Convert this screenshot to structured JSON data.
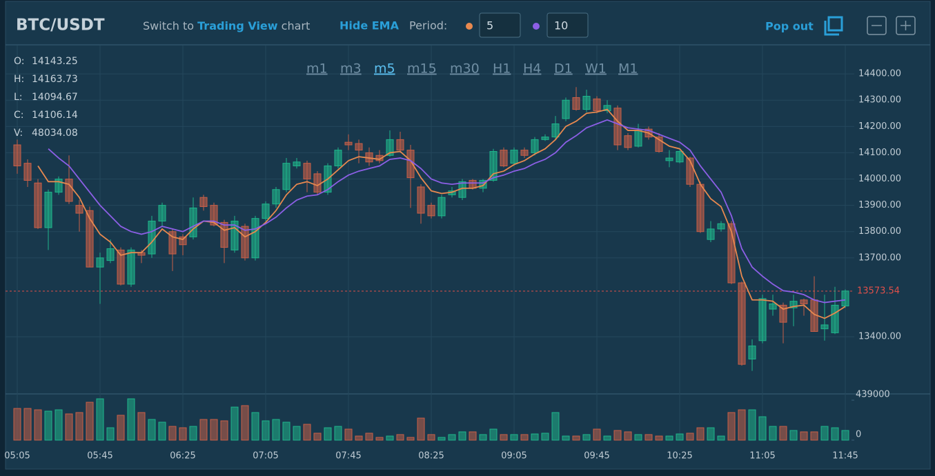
{
  "toolbar": {
    "symbol": "BTC/USDT",
    "switch_prefix": "Switch to",
    "switch_link": "Trading View",
    "switch_suffix": "chart",
    "hide_ema": "Hide EMA",
    "period_label": "Period:",
    "pop_out": "Pop out"
  },
  "timeframes": {
    "items": [
      "m1",
      "m3",
      "m5",
      "m15",
      "m30",
      "H1",
      "H4",
      "D1",
      "W1",
      "M1"
    ],
    "active": 2
  },
  "ohlc_info": [
    {
      "label": "O:",
      "value": 14143.25
    },
    {
      "label": "H:",
      "value": 14163.73
    },
    {
      "label": "L:",
      "value": 14094.67
    },
    {
      "label": "C:",
      "value": 14106.14
    },
    {
      "label": "V:",
      "value": 48034.08
    }
  ],
  "chart_data": {
    "type": "candlestick",
    "categories": [
      "05:05",
      null,
      null,
      null,
      null,
      null,
      null,
      null,
      "05:45",
      null,
      null,
      null,
      null,
      null,
      null,
      null,
      "06:25",
      null,
      null,
      null,
      null,
      null,
      null,
      null,
      "07:05",
      null,
      null,
      null,
      null,
      null,
      null,
      null,
      "07:45",
      null,
      null,
      null,
      null,
      null,
      null,
      null,
      "08:25",
      null,
      null,
      null,
      null,
      null,
      null,
      null,
      "09:05",
      null,
      null,
      null,
      null,
      null,
      null,
      null,
      "09:45",
      null,
      null,
      null,
      null,
      null,
      null,
      null,
      "10:25",
      null,
      null,
      null,
      null,
      null,
      null,
      null,
      "11:05",
      null,
      null,
      null,
      null,
      null,
      null,
      null,
      "11:45"
    ],
    "open": [
      14130,
      14060,
      13985,
      13815,
      13950,
      14000,
      13900,
      13880,
      13665,
      13690,
      13730,
      13600,
      13720,
      13715,
      13840,
      13800,
      13780,
      13780,
      13930,
      13900,
      13835,
      13730,
      13820,
      13700,
      13850,
      13905,
      13960,
      14050,
      14060,
      14020,
      13950,
      14050,
      14140,
      14135,
      14100,
      14090,
      14090,
      14150,
      14110,
      13970,
      13900,
      13860,
      13940,
      13930,
      13995,
      13965,
      13995,
      14110,
      14060,
      14110,
      14100,
      14150,
      14160,
      14230,
      14310,
      14265,
      14305,
      14260,
      14270,
      14165,
      14125,
      14190,
      14160,
      14070,
      14065,
      14080,
      13980,
      13770,
      13810,
      13830,
      13605,
      13315,
      13385,
      13505,
      13520,
      13510,
      13540,
      13540,
      13430,
      13415,
      13517
    ],
    "high": [
      14150,
      14075,
      14000,
      13960,
      14010,
      14090,
      13920,
      13895,
      13720,
      13770,
      13740,
      13740,
      13730,
      13860,
      13910,
      13810,
      13790,
      13930,
      13940,
      13910,
      13845,
      13860,
      13830,
      13860,
      13915,
      13970,
      14080,
      14080,
      14070,
      14030,
      14060,
      14120,
      14170,
      14150,
      14120,
      14110,
      14185,
      14180,
      14130,
      13980,
      13910,
      13940,
      13970,
      14000,
      14000,
      14000,
      14115,
      14120,
      14120,
      14120,
      14160,
      14170,
      14240,
      14310,
      14350,
      14340,
      14315,
      14300,
      14280,
      14175,
      14210,
      14200,
      14175,
      14110,
      14110,
      14085,
      13990,
      13840,
      13840,
      13840,
      13610,
      13390,
      13560,
      13560,
      13530,
      13560,
      13545,
      13630,
      13560,
      13590,
      13580
    ],
    "low": [
      14020,
      13970,
      13810,
      13730,
      13940,
      13905,
      13800,
      13665,
      13525,
      13680,
      13595,
      13590,
      13680,
      13700,
      13820,
      13650,
      13710,
      13770,
      13880,
      13820,
      13680,
      13720,
      13690,
      13690,
      13840,
      13890,
      13950,
      14040,
      13950,
      13940,
      13940,
      14040,
      14110,
      14060,
      14050,
      14060,
      14085,
      14100,
      13890,
      13830,
      13850,
      13850,
      13930,
      13920,
      13960,
      13950,
      13990,
      14045,
      14050,
      14080,
      14090,
      14145,
      14150,
      14220,
      14260,
      14255,
      14250,
      14250,
      14110,
      14110,
      14120,
      14150,
      14100,
      14045,
      14060,
      13970,
      13795,
      13760,
      13800,
      13600,
      13290,
      13270,
      13375,
      13480,
      13375,
      13440,
      13480,
      13420,
      13385,
      13410,
      13510
    ],
    "close": [
      14050,
      13995,
      13815,
      13950,
      14000,
      13915,
      13870,
      13665,
      13700,
      13735,
      13600,
      13730,
      13710,
      13840,
      13900,
      13715,
      13750,
      13890,
      13895,
      13825,
      13740,
      13840,
      13700,
      13850,
      13905,
      13960,
      14060,
      14065,
      14000,
      13950,
      14050,
      14110,
      14130,
      14110,
      14065,
      14070,
      14150,
      14110,
      14005,
      13870,
      13860,
      13930,
      13955,
      13990,
      13965,
      13995,
      14105,
      14050,
      14110,
      14090,
      14150,
      14160,
      14210,
      14300,
      14265,
      14315,
      14260,
      14280,
      14130,
      14120,
      14185,
      14160,
      14105,
      14080,
      14105,
      13980,
      13800,
      13810,
      13830,
      13605,
      13295,
      13365,
      13545,
      13525,
      13455,
      13535,
      13525,
      13420,
      13445,
      13520,
      13574
    ],
    "up_color": "#1fb58b",
    "down_color": "#c85f48",
    "ema": [
      {
        "period": 5,
        "color": "#e8894f",
        "values": [
          null,
          null,
          14050,
          13990,
          13990,
          13980,
          13930,
          13850,
          13790,
          13760,
          13710,
          13720,
          13720,
          13760,
          13810,
          13780,
          13770,
          13810,
          13840,
          13835,
          13805,
          13815,
          13780,
          13800,
          13835,
          13880,
          13940,
          13980,
          13990,
          13975,
          14000,
          14035,
          14070,
          14085,
          14080,
          14075,
          14100,
          14105,
          14070,
          14005,
          13955,
          13945,
          13950,
          13965,
          13965,
          13975,
          14020,
          14030,
          14055,
          14070,
          14095,
          14115,
          14150,
          14200,
          14220,
          14250,
          14255,
          14265,
          14220,
          14185,
          14185,
          14175,
          14150,
          14125,
          14115,
          14070,
          13980,
          13925,
          13895,
          13800,
          13630,
          13540,
          13540,
          13535,
          13505,
          13515,
          13520,
          13485,
          13470,
          13490,
          13515
        ]
      },
      {
        "period": 10,
        "color": "#8c5fe6",
        "values": [
          null,
          null,
          null,
          14115,
          14080,
          14050,
          14000,
          13950,
          13900,
          13860,
          13820,
          13800,
          13790,
          13800,
          13820,
          13810,
          13800,
          13820,
          13840,
          13840,
          13825,
          13825,
          13805,
          13810,
          13830,
          13855,
          13890,
          13920,
          13935,
          13940,
          13960,
          13990,
          14015,
          14030,
          14040,
          14050,
          14075,
          14080,
          14070,
          14040,
          14000,
          13985,
          13980,
          13985,
          13985,
          13985,
          14005,
          14015,
          14030,
          14040,
          14060,
          14075,
          14100,
          14140,
          14165,
          14195,
          14210,
          14225,
          14210,
          14195,
          14190,
          14185,
          14170,
          14155,
          14140,
          14110,
          14050,
          14000,
          13950,
          13860,
          13735,
          13665,
          13630,
          13600,
          13575,
          13570,
          13560,
          13540,
          13530,
          13535,
          13540
        ]
      }
    ],
    "ylim": [
      13185,
      14508
    ],
    "yticks": [
      {
        "value": 13400,
        "label": "13400.00"
      },
      {
        "value": 13700,
        "label": "13700.00"
      },
      {
        "value": 13800,
        "label": "13800.00"
      },
      {
        "value": 13900,
        "label": "13900.00"
      },
      {
        "value": 14000,
        "label": "14000.00"
      },
      {
        "value": 14100,
        "label": "14100.00"
      },
      {
        "value": 14200,
        "label": "14200.00"
      },
      {
        "value": 14300,
        "label": "14300.00"
      },
      {
        "value": 14400,
        "label": "14400.00"
      }
    ],
    "last_price": 13573.54,
    "last_price_color": "#e0504a",
    "volume": {
      "values": [
        348000,
        348000,
        333000,
        318000,
        333000,
        288000,
        303000,
        416000,
        454000,
        136000,
        273000,
        454000,
        303000,
        227000,
        197000,
        151000,
        136000,
        151000,
        227000,
        227000,
        212000,
        363000,
        379000,
        303000,
        212000,
        227000,
        197000,
        151000,
        174000,
        76000,
        136000,
        151000,
        121000,
        45000,
        76000,
        30000,
        45000,
        61000,
        30000,
        242000,
        61000,
        30000,
        61000,
        91000,
        91000,
        61000,
        121000,
        61000,
        61000,
        61000,
        68000,
        76000,
        303000,
        45000,
        45000,
        61000,
        121000,
        45000,
        106000,
        91000,
        61000,
        61000,
        45000,
        45000,
        68000,
        76000,
        136000,
        136000,
        45000,
        303000,
        333000,
        333000,
        257000,
        151000,
        151000,
        106000,
        91000,
        91000,
        151000,
        136000,
        106000
      ],
      "ylim": [
        0,
        500000
      ],
      "yticks": [
        0,
        439000
      ]
    },
    "grid": true
  }
}
